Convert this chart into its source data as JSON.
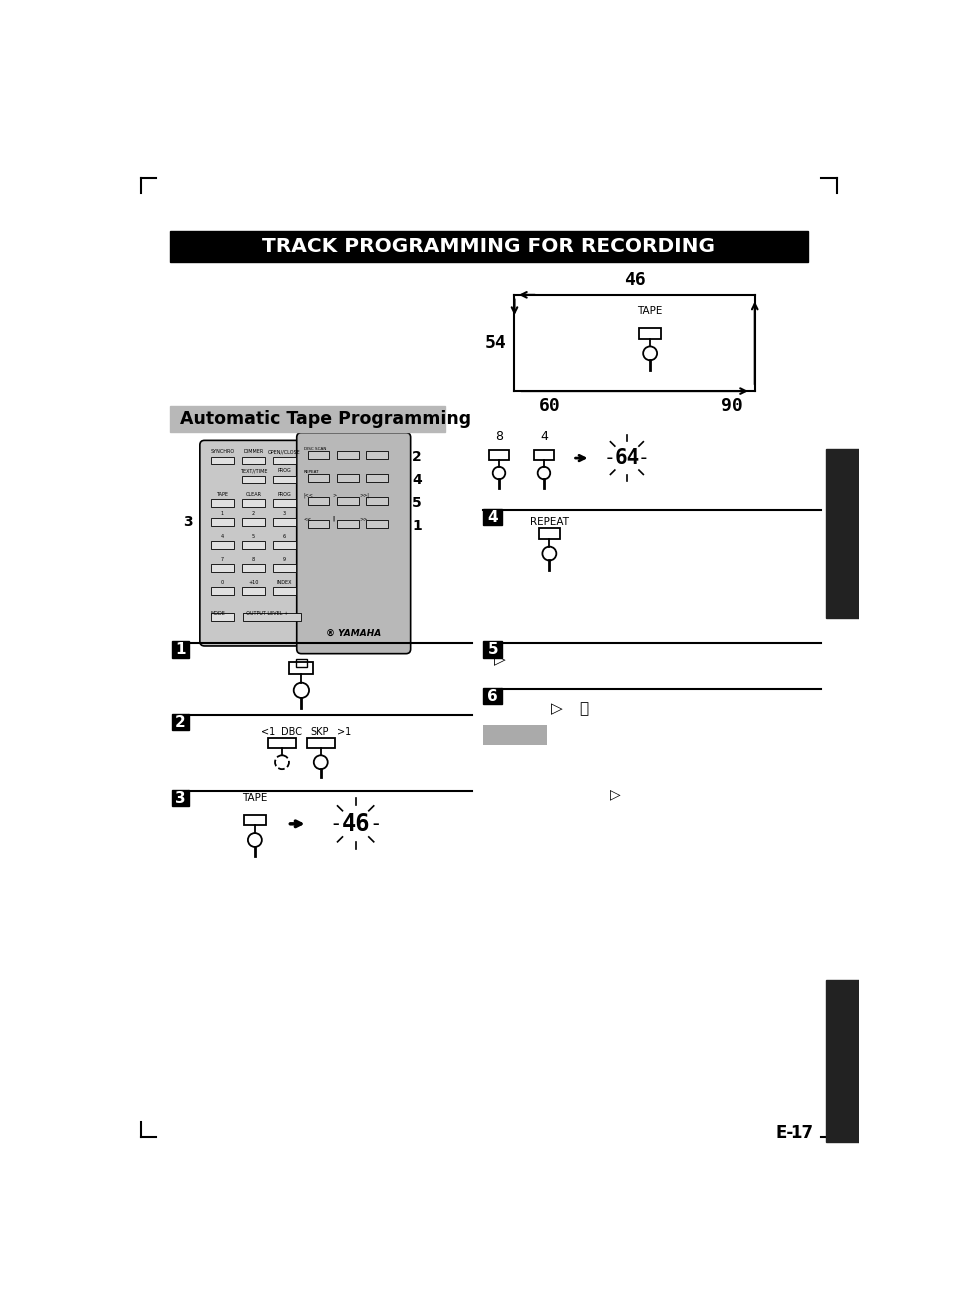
{
  "title": "TRACK PROGRAMMING FOR RECORDING",
  "subtitle": "Automatic Tape Programming",
  "bg_color": "#ffffff",
  "title_bg": "#000000",
  "title_fg": "#ffffff",
  "subtitle_bg": "#b8b8b8",
  "subtitle_fg": "#000000",
  "page_number": "E-17",
  "right_tab_color": "#222222",
  "remote_color": "#c8c8c8",
  "remote_dark": "#a0a0a0"
}
